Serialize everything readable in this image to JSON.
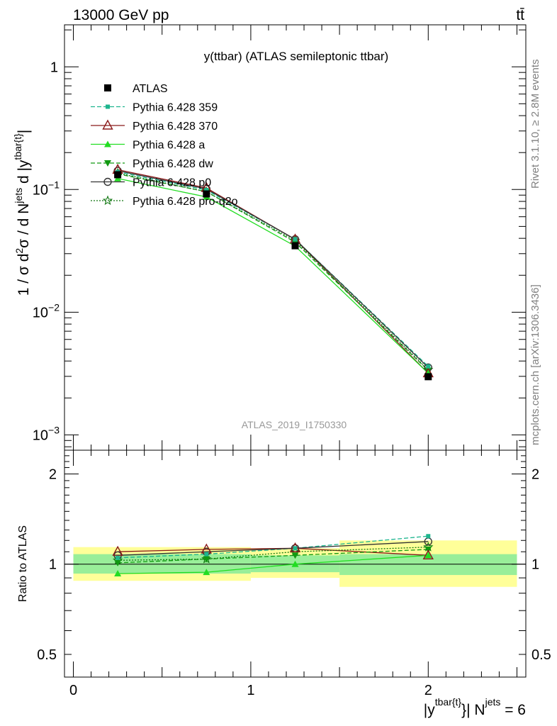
{
  "header": {
    "energy": "13000 GeV pp",
    "process": "tt̄",
    "side_rivet": "Rivet 3.1.10, ≥ 2.8M events",
    "side_mcplots": "mcplots.cern.ch [arXiv:1306.3436]",
    "watermark": "ATLAS_2019_I1750330"
  },
  "chart_data": [
    {
      "type": "line",
      "title": "y(ttbar) (ATLAS semileptonic ttbar)",
      "ylabel": "1 / σ d²σ / d N^jets d |y^tbar{t}|",
      "xlim": [
        -0.05,
        2.55
      ],
      "ylim": [
        0.00075,
        2.2
      ],
      "yscale": "log",
      "y_ticks": [
        "10^-3",
        "10^-2",
        "10^-1",
        "1"
      ],
      "x": [
        0.25,
        0.75,
        1.25,
        2.0
      ],
      "x_bins": [
        [
          0,
          0.5
        ],
        [
          0.5,
          1.0
        ],
        [
          1.0,
          1.5
        ],
        [
          1.5,
          2.5
        ]
      ],
      "legend_position": "top-left",
      "series": [
        {
          "name": "ATLAS",
          "color": "#000000",
          "marker": "square",
          "line": "none",
          "values": [
            0.132,
            0.092,
            0.0348,
            0.00298
          ]
        },
        {
          "name": "Pythia 6.428 359",
          "color": "#1eb58e",
          "marker": "small-square",
          "line": "dashed",
          "values": [
            0.139,
            0.099,
            0.0393,
            0.00362
          ]
        },
        {
          "name": "Pythia 6.428 370",
          "color": "#8b1a1a",
          "marker": "open-triangle",
          "line": "solid",
          "values": [
            0.145,
            0.103,
            0.0392,
            0.00318
          ]
        },
        {
          "name": "Pythia 6.428 a",
          "color": "#22dd22",
          "marker": "triangle",
          "line": "solid",
          "values": [
            0.123,
            0.087,
            0.0346,
            0.00318
          ]
        },
        {
          "name": "Pythia 6.428 dw",
          "color": "#119911",
          "marker": "triangle-down",
          "line": "dashed",
          "values": [
            0.134,
            0.096,
            0.0372,
            0.00335
          ]
        },
        {
          "name": "Pythia 6.428 p0",
          "color": "#333333",
          "marker": "open-circle",
          "line": "solid",
          "values": [
            0.142,
            0.101,
            0.0393,
            0.00354
          ]
        },
        {
          "name": "Pythia 6.428 pro-q2o",
          "color": "#117711",
          "marker": "open-star",
          "line": "dotted",
          "values": [
            0.136,
            0.096,
            0.0383,
            0.0034
          ]
        }
      ]
    },
    {
      "type": "line",
      "ylabel": "Ratio to ATLAS",
      "xlabel": "|y^tbar{t}| N^jets = 6",
      "xlim": [
        -0.05,
        2.55
      ],
      "ylim": [
        0.42,
        2.4
      ],
      "yscale": "log",
      "y_ticks": [
        "0.5",
        "1",
        "2"
      ],
      "x_ticks": [
        "0",
        "1",
        "2"
      ],
      "x": [
        0.25,
        0.75,
        1.25,
        2.0
      ],
      "bands": {
        "bins": [
          [
            0,
            1.0
          ],
          [
            1.0,
            1.5
          ],
          [
            1.5,
            2.5
          ]
        ],
        "yellow": [
          [
            0.88,
            1.14
          ],
          [
            0.9,
            1.13
          ],
          [
            0.84,
            1.2
          ]
        ],
        "green": [
          [
            0.93,
            1.08
          ],
          [
            0.94,
            1.07
          ],
          [
            0.92,
            1.08
          ]
        ],
        "yellow_color": "#ffff99",
        "green_color": "#99ee99"
      },
      "series": [
        {
          "name": "Pythia 6.428 359",
          "color": "#1eb58e",
          "values": [
            1.05,
            1.08,
            1.13,
            1.24
          ]
        },
        {
          "name": "Pythia 6.428 370",
          "color": "#8b1a1a",
          "values": [
            1.1,
            1.12,
            1.13,
            1.07
          ]
        },
        {
          "name": "Pythia 6.428 a",
          "color": "#22dd22",
          "values": [
            0.93,
            0.94,
            1.0,
            1.07
          ]
        },
        {
          "name": "Pythia 6.428 dw",
          "color": "#119911",
          "values": [
            1.01,
            1.04,
            1.07,
            1.12
          ]
        },
        {
          "name": "Pythia 6.428 p0",
          "color": "#333333",
          "values": [
            1.07,
            1.1,
            1.13,
            1.19
          ]
        },
        {
          "name": "Pythia 6.428 pro-q2o",
          "color": "#117711",
          "values": [
            1.03,
            1.04,
            1.1,
            1.14
          ]
        }
      ]
    }
  ]
}
